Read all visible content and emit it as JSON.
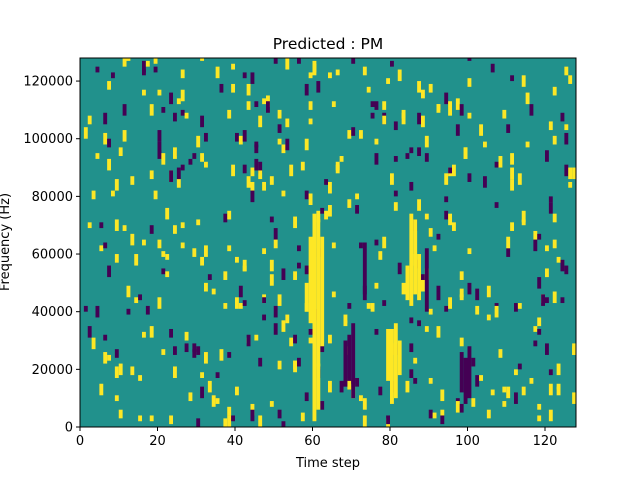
{
  "chart_data": {
    "type": "heatmap",
    "title": "Predicted : PM",
    "xlabel": "Time step",
    "ylabel": "Frequency (Hz)",
    "xlim": [
      0,
      128
    ],
    "ylim": [
      0,
      128000
    ],
    "x_ticks": [
      0,
      20,
      40,
      60,
      80,
      100,
      120
    ],
    "y_ticks": [
      0,
      20000,
      40000,
      60000,
      80000,
      100000,
      120000
    ],
    "grid": false,
    "colormap": "viridis",
    "colors": {
      "background": "#21918c",
      "high": "#fde725",
      "low": "#440154"
    },
    "n_time_steps": 128,
    "n_freq_bins": 128,
    "high_columns": [
      {
        "t": 58,
        "f_from": 40000,
        "f_to": 50000
      },
      {
        "t": 59,
        "f_from": 36000,
        "f_to": 66000
      },
      {
        "t": 60,
        "f_from": 2000,
        "f_to": 74000
      },
      {
        "t": 61,
        "f_from": 6000,
        "f_to": 72000
      },
      {
        "t": 62,
        "f_from": 28000,
        "f_to": 66000
      },
      {
        "t": 79,
        "f_from": 16000,
        "f_to": 34000
      },
      {
        "t": 80,
        "f_from": 8000,
        "f_to": 34000
      },
      {
        "t": 81,
        "f_from": 10000,
        "f_to": 36000
      },
      {
        "t": 82,
        "f_from": 18000,
        "f_to": 30000
      },
      {
        "t": 84,
        "f_from": 44000,
        "f_to": 56000
      },
      {
        "t": 85,
        "f_from": 42000,
        "f_to": 74000
      },
      {
        "t": 86,
        "f_from": 46000,
        "f_to": 72000
      },
      {
        "t": 87,
        "f_from": 44000,
        "f_to": 60000
      }
    ],
    "low_columns": [
      {
        "t": 68,
        "f_from": 14000,
        "f_to": 30000
      },
      {
        "t": 69,
        "f_from": 16000,
        "f_to": 32000
      },
      {
        "t": 70,
        "f_from": 10000,
        "f_to": 36000
      },
      {
        "t": 73,
        "f_from": 44000,
        "f_to": 64000
      },
      {
        "t": 89,
        "f_from": 40000,
        "f_to": 62000
      },
      {
        "t": 98,
        "f_from": 12000,
        "f_to": 26000
      },
      {
        "t": 99,
        "f_from": 8000,
        "f_to": 24000
      },
      {
        "t": 100,
        "f_from": 10000,
        "f_to": 28000
      }
    ]
  }
}
